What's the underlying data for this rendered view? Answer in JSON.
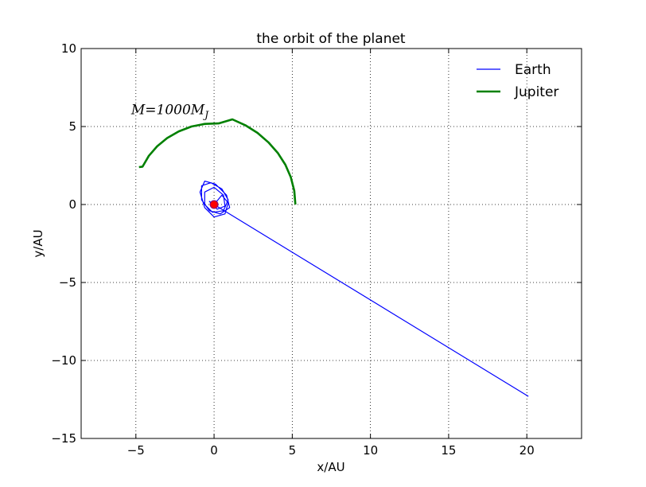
{
  "chart_data": {
    "type": "line",
    "title": "the orbit of the planet",
    "xlabel": "x/AU",
    "ylabel": "y/AU",
    "xlim": [
      -8.5,
      23.5
    ],
    "ylim": [
      -15,
      10
    ],
    "xticks": [
      -5,
      0,
      5,
      10,
      15,
      20
    ],
    "yticks": [
      -15,
      -10,
      -5,
      0,
      5,
      10
    ],
    "xtick_labels": [
      "−5",
      "0",
      "5",
      "10",
      "15",
      "20"
    ],
    "ytick_labels": [
      "−15",
      "−10",
      "−5",
      "0",
      "5",
      "10"
    ],
    "grid": true,
    "legend_position": "top-right",
    "annotation": {
      "text": "M=1000M",
      "subscript": "J",
      "x": -5.3,
      "y": 5.8
    },
    "central_mass": {
      "x": 0,
      "y": 0,
      "color": "#ff0000"
    },
    "series": [
      {
        "name": "Earth",
        "color": "#0000ff",
        "x": [
          0.0,
          0.5,
          0.9,
          0.7,
          0.0,
          -0.6,
          -0.9,
          -0.6,
          0.1,
          0.8,
          1.0,
          0.4,
          -0.3,
          -0.8,
          -0.8,
          -0.2,
          0.5,
          0.9,
          0.6,
          -0.1,
          -0.6,
          -0.6,
          0.0,
          0.6,
          0.7,
          0.2,
          -0.3,
          0.0,
          20.1
        ],
        "y": [
          0.0,
          0.6,
          0.1,
          -0.6,
          -0.8,
          -0.2,
          0.8,
          1.5,
          1.3,
          0.6,
          -0.2,
          -0.6,
          -0.4,
          0.3,
          1.2,
          1.4,
          1.0,
          0.3,
          -0.4,
          -0.5,
          0.0,
          0.8,
          1.1,
          0.6,
          -0.1,
          -0.3,
          0.2,
          0.0,
          -12.3
        ]
      },
      {
        "name": "Jupiter",
        "color": "#008000",
        "x": [
          5.2,
          5.13,
          4.91,
          4.56,
          4.07,
          3.47,
          2.78,
          2.0,
          1.17,
          0.29,
          -0.59,
          -1.45,
          -2.26,
          -3.0,
          -3.64,
          -4.17,
          -4.57,
          -4.8
        ],
        "y": [
          0.0,
          0.88,
          1.74,
          2.55,
          3.31,
          3.99,
          4.59,
          5.08,
          5.46,
          5.2,
          5.17,
          5.0,
          4.69,
          4.26,
          3.73,
          3.12,
          2.43,
          2.4
        ]
      }
    ]
  }
}
